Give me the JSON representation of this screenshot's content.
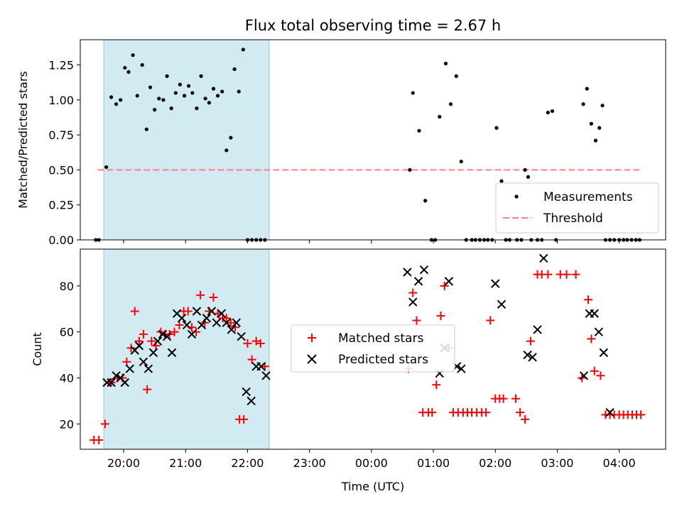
{
  "chart_data": [
    {
      "type": "scatter",
      "title": "Flux total observing time = 2.67 h",
      "xlabel": "",
      "ylabel": "Matched/Predicted stars",
      "ylim": [
        0,
        1.43
      ],
      "yticks": [
        0,
        0.25,
        0.5,
        0.75,
        1.0,
        1.25
      ],
      "ytick_labels": [
        "0.00",
        "0.25",
        "0.50",
        "0.75",
        "1.00",
        "1.25"
      ],
      "xlim": [
        19.3,
        28.75
      ],
      "shaded_span": [
        19.68,
        22.35
      ],
      "threshold": {
        "value": 0.5,
        "x_range": [
          19.58,
          28.35
        ],
        "color": "#ff8080"
      },
      "legend": {
        "placement": "lower-right",
        "entries": [
          "Measurements",
          "Threshold"
        ]
      },
      "series": [
        {
          "name": "Measurements",
          "color": "#000000",
          "marker": "dot",
          "x": [
            19.55,
            19.6,
            19.72,
            19.8,
            19.88,
            19.95,
            20.02,
            20.08,
            20.15,
            20.22,
            20.3,
            20.37,
            20.43,
            20.5,
            20.57,
            20.64,
            20.7,
            20.77,
            20.84,
            20.91,
            20.98,
            21.05,
            21.11,
            21.18,
            21.25,
            21.32,
            21.38,
            21.45,
            21.52,
            21.59,
            21.66,
            21.73,
            21.79,
            21.86,
            21.93,
            22.0,
            22.07,
            22.14,
            22.21,
            22.28,
            24.62,
            24.67,
            24.77,
            24.87,
            24.97,
            25.03,
            25.1,
            25.2,
            25.28,
            25.37,
            25.45,
            25.53,
            25.62,
            25.68,
            25.75,
            25.82,
            25.88,
            25.95,
            26.02,
            26.1,
            26.17,
            26.23,
            26.35,
            26.42,
            26.48,
            26.53,
            26.58,
            26.68,
            26.75,
            26.85,
            26.92,
            26.98,
            27.42,
            27.48,
            27.55,
            27.62,
            27.68,
            27.73,
            27.78,
            27.85,
            27.92,
            28.0,
            28.07,
            28.13,
            28.2,
            28.27,
            28.33
          ],
          "y": [
            0.0,
            0.0,
            0.52,
            1.02,
            0.97,
            1.0,
            1.23,
            1.2,
            1.32,
            1.03,
            1.25,
            0.79,
            1.09,
            0.93,
            1.01,
            1.0,
            1.17,
            0.94,
            1.05,
            1.11,
            1.03,
            1.1,
            1.05,
            0.94,
            1.17,
            1.01,
            0.98,
            1.08,
            1.03,
            1.06,
            0.64,
            0.73,
            1.22,
            1.06,
            1.36,
            0.0,
            0.0,
            0.0,
            0.0,
            0.0,
            0.5,
            1.05,
            0.78,
            0.28,
            0.0,
            0.0,
            0.88,
            1.26,
            0.97,
            1.17,
            0.56,
            0.0,
            0.0,
            0.0,
            0.0,
            0.0,
            0.0,
            0.0,
            0.8,
            0.42,
            0.0,
            0.0,
            0.0,
            0.0,
            0.5,
            0.45,
            0.0,
            0.0,
            0.0,
            0.91,
            0.92,
            0.0,
            0.97,
            1.08,
            0.83,
            0.71,
            0.8,
            0.96,
            0.0,
            0.0,
            0.0,
            0.0,
            0.0,
            0.0,
            0.0,
            0.0,
            0.0
          ]
        }
      ]
    },
    {
      "type": "scatter",
      "title": "",
      "xlabel": "Time (UTC)",
      "ylabel": "Count",
      "ylim": [
        9,
        96
      ],
      "yticks": [
        20,
        40,
        60,
        80
      ],
      "ytick_labels": [
        "20",
        "40",
        "60",
        "80"
      ],
      "xlim": [
        19.3,
        28.75
      ],
      "xticks": [
        20,
        21,
        22,
        23,
        24,
        25,
        26,
        27,
        28
      ],
      "xtick_labels": [
        "20:00",
        "21:00",
        "22:00",
        "23:00",
        "00:00",
        "01:00",
        "02:00",
        "03:00",
        "04:00"
      ],
      "shaded_span": [
        19.68,
        22.35
      ],
      "legend": {
        "placement": "center",
        "entries": [
          "Matched stars",
          "Predicted stars"
        ]
      },
      "series": [
        {
          "name": "Matched stars",
          "color": "#ff0000",
          "marker": "plus",
          "x": [
            19.52,
            19.6,
            19.7,
            19.8,
            19.9,
            19.98,
            20.05,
            20.12,
            20.18,
            20.25,
            20.32,
            20.38,
            20.45,
            20.52,
            20.6,
            20.67,
            20.74,
            20.82,
            20.9,
            20.97,
            21.04,
            21.1,
            21.17,
            21.24,
            21.31,
            21.38,
            21.45,
            21.52,
            21.6,
            21.66,
            21.73,
            21.8,
            21.87,
            21.94,
            22.0,
            22.07,
            22.14,
            22.21,
            22.28,
            24.6,
            24.67,
            24.73,
            24.83,
            24.92,
            24.98,
            25.05,
            25.12,
            25.18,
            25.25,
            25.32,
            25.4,
            25.48,
            25.55,
            25.62,
            25.7,
            25.78,
            25.85,
            25.92,
            26.0,
            26.07,
            26.13,
            26.33,
            26.4,
            26.48,
            26.57,
            26.68,
            26.75,
            26.85,
            27.05,
            27.15,
            27.3,
            27.4,
            27.5,
            27.55,
            27.6,
            27.7,
            27.78,
            27.85,
            27.92,
            28.0,
            28.07,
            28.14,
            28.21,
            28.28,
            28.35
          ],
          "y": [
            13,
            13,
            20,
            38,
            40,
            40,
            47,
            53,
            69,
            56,
            59,
            35,
            56,
            54,
            60,
            59,
            59,
            60,
            63,
            69,
            69,
            62,
            60,
            76,
            64,
            69,
            75,
            68,
            66,
            66,
            64,
            62,
            22,
            22,
            55,
            48,
            56,
            55,
            45,
            44,
            77,
            65,
            25,
            25,
            25,
            37,
            67,
            80,
            53,
            25,
            25,
            25,
            25,
            25,
            25,
            25,
            25,
            65,
            31,
            31,
            31,
            31,
            25,
            22,
            56,
            85,
            85,
            85,
            85,
            85,
            85,
            40,
            74,
            57,
            43,
            41,
            24,
            24,
            24,
            24,
            24,
            24,
            24,
            24,
            24
          ],
          "y_note": "plotted"
        },
        {
          "name": "Predicted stars",
          "color": "#000000",
          "marker": "x",
          "x": [
            19.73,
            19.8,
            19.88,
            19.95,
            20.02,
            20.1,
            20.18,
            20.25,
            20.32,
            20.4,
            20.48,
            20.55,
            20.63,
            20.7,
            20.78,
            20.86,
            20.94,
            21.02,
            21.1,
            21.18,
            21.26,
            21.34,
            21.42,
            21.5,
            21.58,
            21.66,
            21.74,
            21.82,
            21.9,
            21.98,
            22.06,
            22.14,
            22.22,
            22.3,
            24.58,
            24.67,
            24.76,
            24.85,
            25.1,
            25.18,
            25.25,
            25.38,
            25.45,
            26.0,
            26.1,
            26.52,
            26.6,
            26.68,
            26.78,
            27.43,
            27.52,
            27.6,
            27.67,
            27.75,
            27.85
          ],
          "y": [
            38,
            38,
            41,
            40,
            38,
            44,
            52,
            54,
            47,
            44,
            51,
            56,
            59,
            58,
            51,
            68,
            66,
            63,
            59,
            69,
            63,
            66,
            69,
            64,
            68,
            64,
            61,
            64,
            58,
            34,
            30,
            45,
            45,
            41,
            86,
            73,
            82,
            87,
            42,
            53,
            82,
            45,
            44,
            81,
            72,
            50,
            49,
            61,
            92,
            41,
            68,
            68,
            60,
            51,
            25
          ]
        }
      ]
    }
  ]
}
